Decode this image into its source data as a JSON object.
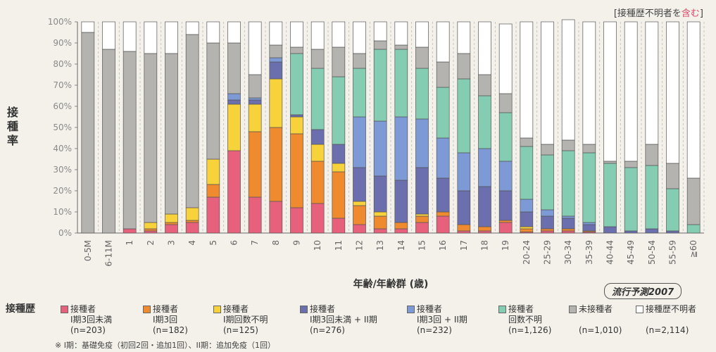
{
  "note": {
    "prefix": "[接種歴不明者を",
    "highlight": "含む",
    "suffix": "]"
  },
  "forecast_label": "流行予測2007",
  "footnote": "※ I期：基礎免疫（初回2回・追加1回）、II期：追加免疫（1回）",
  "legend": {
    "title": "接種歴",
    "items": [
      {
        "line1": "接種者",
        "line2": "I期3回未満",
        "line3": "(n=203)",
        "color": "#e8617c"
      },
      {
        "line1": "接種者",
        "line2": "I期3回",
        "line3": "(n=182)",
        "color": "#ef8a2f"
      },
      {
        "line1": "接種者",
        "line2": "I期回数不明",
        "line3": "(n=125)",
        "color": "#f7d23a"
      },
      {
        "line1": "接種者",
        "line2": "I期3回未満 + II期",
        "line3": "(n=276)",
        "color": "#6b6fae"
      },
      {
        "line1": "接種者",
        "line2": "I期3回 + II期",
        "line3": "(n=232)",
        "color": "#7d9ad6"
      },
      {
        "line1": "接種者",
        "line2": "回数不明",
        "line3": "(n=1,126)",
        "color": "#84cdb3"
      },
      {
        "line1": "未接種者",
        "line2": "",
        "line3": "(n=1,010)",
        "color": "#b5b3b0"
      },
      {
        "line1": "接種歴不明者",
        "line2": "",
        "line3": "(n=2,114)",
        "color": "#ffffff"
      }
    ]
  },
  "chart_data": {
    "type": "bar",
    "stacked": true,
    "title": "",
    "xlabel": "年齢/年齢群 (歳)",
    "ylabel": "接種率",
    "ylim": [
      0,
      100
    ],
    "yticks": [
      "0%",
      "10%",
      "20%",
      "30%",
      "40%",
      "50%",
      "60%",
      "70%",
      "80%",
      "90%",
      "100%"
    ],
    "grid": "vertical-dashed",
    "categories": [
      "0-5M",
      "6-11M",
      "1",
      "2",
      "3",
      "4",
      "5",
      "6",
      "7",
      "8",
      "9",
      "10",
      "11",
      "12",
      "13",
      "14",
      "15",
      "16",
      "17",
      "18",
      "19",
      "20-24",
      "25-29",
      "30-34",
      "35-39",
      "40-44",
      "45-49",
      "50-54",
      "55-59",
      "≧60"
    ],
    "series": [
      {
        "name": "接種者 I期3回未満",
        "color": "#e8617c",
        "values": [
          0,
          0,
          2,
          1,
          4,
          5,
          17,
          39,
          17,
          15,
          12,
          14,
          7,
          4,
          2,
          2,
          5,
          8,
          1,
          1,
          5,
          0.5,
          1,
          1,
          0.5,
          0,
          0,
          0,
          0,
          0
        ]
      },
      {
        "name": "接種者 I期3回",
        "color": "#ef8a2f",
        "values": [
          0,
          0,
          0,
          1,
          1,
          1,
          6,
          0,
          31,
          35,
          35,
          20,
          22,
          9,
          6,
          3,
          3,
          2,
          3,
          2,
          1,
          1.5,
          1,
          1,
          0.5,
          0,
          0,
          0,
          0,
          0
        ]
      },
      {
        "name": "接種者 I期回数不明",
        "color": "#f7d23a",
        "values": [
          0,
          0,
          0,
          3,
          4,
          6,
          12,
          22,
          13,
          23,
          8,
          8,
          4,
          2,
          2,
          0,
          1,
          0,
          0,
          0,
          0,
          1,
          0,
          0,
          0,
          0,
          0,
          0,
          0,
          0
        ]
      },
      {
        "name": "接種者 I期3回未満 + II期",
        "color": "#6b6fae",
        "values": [
          0,
          0,
          0,
          0,
          0,
          0,
          0,
          2,
          2,
          8,
          1,
          7,
          9,
          16,
          17,
          20,
          22,
          16,
          16,
          19,
          14,
          7,
          6,
          5,
          3,
          3,
          1,
          2,
          1,
          0
        ]
      },
      {
        "name": "接種者 I期3回 + II期",
        "color": "#7d9ad6",
        "values": [
          0,
          0,
          0,
          0,
          0,
          0,
          0,
          3,
          1,
          2,
          0,
          0,
          0,
          24,
          26,
          30,
          23,
          19,
          18,
          18,
          14,
          6,
          3,
          1,
          1,
          0,
          0,
          0,
          0,
          0
        ]
      },
      {
        "name": "接種者 回数不明",
        "color": "#84cdb3",
        "values": [
          0,
          0,
          0,
          0,
          0,
          0,
          0,
          0,
          0,
          0,
          29,
          29,
          32,
          23,
          34,
          32,
          24,
          24,
          35,
          25,
          23,
          25,
          26,
          31,
          33,
          30,
          30,
          30,
          20,
          4
        ]
      },
      {
        "name": "未接種者",
        "color": "#b5b3b0",
        "values": [
          95,
          87,
          84,
          80,
          76,
          82,
          55,
          24,
          11,
          6,
          3,
          9,
          14,
          7,
          4,
          2,
          10,
          12,
          12,
          10,
          9,
          4,
          5,
          5,
          4,
          1,
          3,
          10,
          12,
          22
        ]
      },
      {
        "name": "接種歴不明者",
        "color": "#ffffff",
        "values": [
          5,
          13,
          14,
          15,
          15,
          6,
          10,
          10,
          25,
          11,
          12,
          13,
          12,
          15,
          9,
          11,
          12,
          19,
          15,
          25,
          33,
          55,
          58,
          57,
          58,
          66,
          66,
          58,
          67,
          74
        ]
      }
    ]
  }
}
